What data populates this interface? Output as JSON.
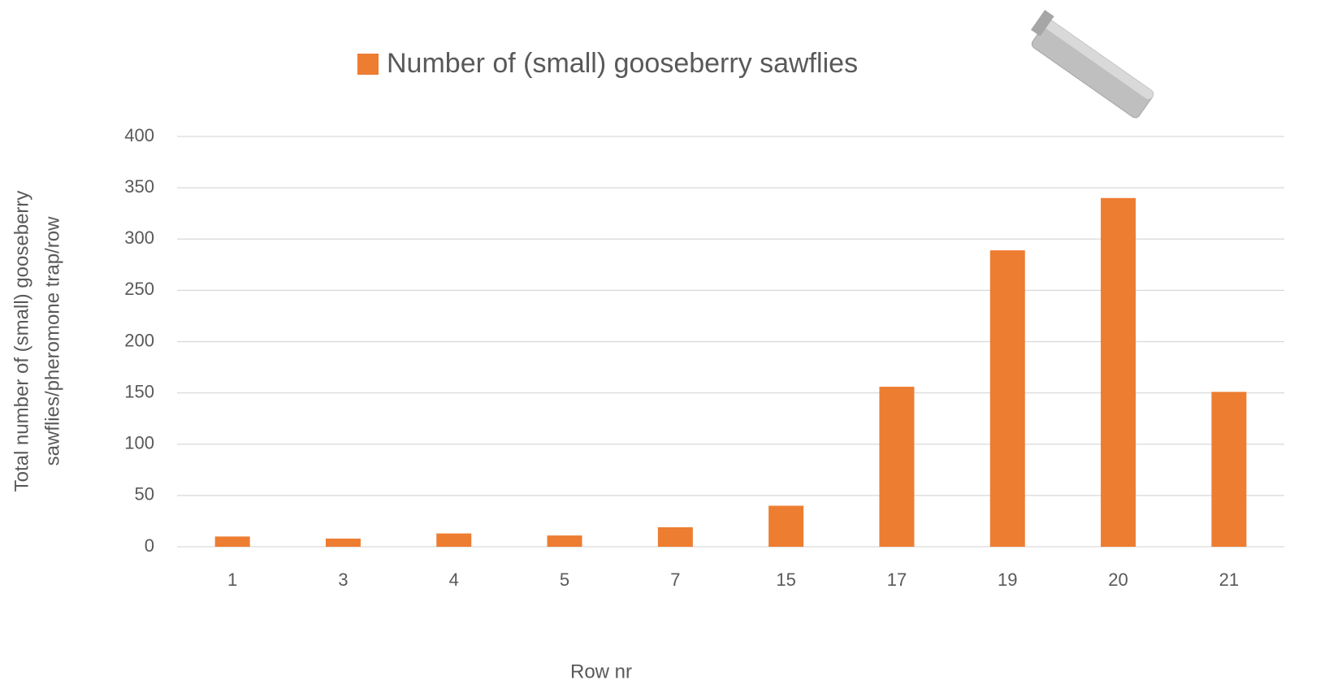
{
  "chart_data": {
    "type": "bar",
    "legend": "Number of (small) gooseberry sawflies",
    "xlabel": "Row nr",
    "ylabel": [
      "Total number of (small) gooseberry",
      "sawflies/pheromone trap/row"
    ],
    "categories": [
      "1",
      "3",
      "4",
      "5",
      "7",
      "15",
      "17",
      "19",
      "20",
      "21"
    ],
    "values": [
      10,
      8,
      13,
      11,
      19,
      40,
      156,
      289,
      340,
      151
    ],
    "color": "#ed7d31",
    "ylim": [
      0,
      400
    ],
    "yticks": [
      0,
      50,
      100,
      150,
      200,
      250,
      300,
      350,
      400
    ],
    "grid": true
  }
}
